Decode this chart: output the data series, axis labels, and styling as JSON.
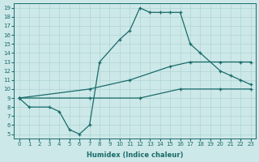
{
  "xlabel": "Humidex (Indice chaleur)",
  "background_color": "#cde8e8",
  "line_color": "#1a6b6b",
  "grid_color": "#b0d4d4",
  "xlim": [
    -0.5,
    23.5
  ],
  "ylim": [
    4.5,
    19.5
  ],
  "xticks": [
    0,
    1,
    2,
    3,
    4,
    5,
    6,
    7,
    8,
    9,
    10,
    11,
    12,
    13,
    14,
    15,
    16,
    17,
    18,
    19,
    20,
    21,
    22,
    23
  ],
  "yticks": [
    5,
    6,
    7,
    8,
    9,
    10,
    11,
    12,
    13,
    14,
    15,
    16,
    17,
    18,
    19
  ],
  "line1_x": [
    0,
    1,
    3,
    4,
    5,
    6,
    7,
    8,
    10,
    11,
    12,
    13,
    14,
    15,
    16,
    17,
    18,
    20,
    21,
    22,
    23
  ],
  "line1_y": [
    9,
    8,
    8,
    7.5,
    5.5,
    5,
    6,
    13,
    15.5,
    16.5,
    19,
    18.5,
    18.5,
    18.5,
    18.5,
    15,
    14,
    12,
    11.5,
    11,
    10.5
  ],
  "line2_x": [
    0,
    7,
    11,
    15,
    17,
    20,
    22,
    23
  ],
  "line2_y": [
    9,
    10,
    11,
    12.5,
    13,
    13,
    13,
    13
  ],
  "line3_x": [
    0,
    7,
    12,
    16,
    20,
    23
  ],
  "line3_y": [
    9,
    9,
    9,
    10,
    10,
    10
  ]
}
